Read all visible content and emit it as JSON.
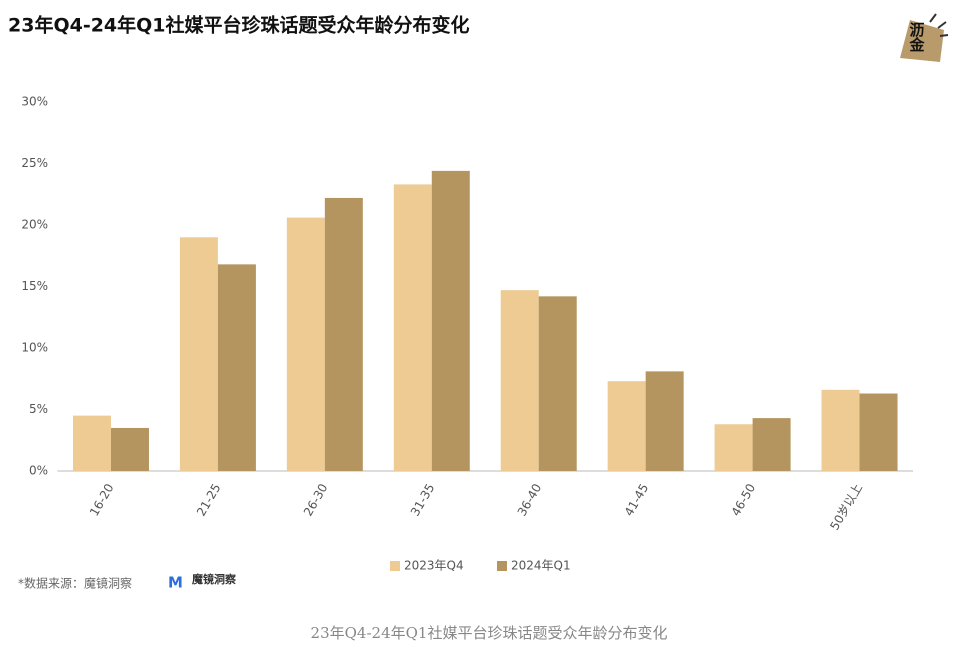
{
  "chart_data": {
    "type": "bar",
    "title": "23年Q4-24年Q1社媒平台珍珠话题受众年龄分布变化",
    "logo": "沥金",
    "categories": [
      "16-20",
      "21-25",
      "26-30",
      "31-35",
      "36-40",
      "41-45",
      "46-50",
      "50岁以上"
    ],
    "series": [
      {
        "name": "2023年Q4",
        "color": "#edcb92",
        "values": [
          4.5,
          19,
          20.6,
          23.3,
          14.7,
          7.3,
          3.8,
          6.6
        ]
      },
      {
        "name": "2024年Q1",
        "color": "#b5955f",
        "values": [
          3.5,
          16.8,
          22.2,
          24.4,
          14.2,
          8.1,
          4.3,
          6.3
        ]
      }
    ],
    "ylim": [
      0,
      30
    ],
    "yticks": [
      {
        "value": 0,
        "label": "0%"
      },
      {
        "value": 5,
        "label": "5%"
      },
      {
        "value": 10,
        "label": "10%"
      },
      {
        "value": 15,
        "label": "15%"
      },
      {
        "value": 20,
        "label": "20%"
      },
      {
        "value": 25,
        "label": "25%"
      },
      {
        "value": 30,
        "label": "30%"
      }
    ],
    "grid": false,
    "legend": "bottom",
    "source": "*数据来源：魔镜洞察",
    "source_logo": "魔镜洞察",
    "caption": "23年Q4-24年Q1社媒平台珍珠话题受众年龄分布变化"
  }
}
